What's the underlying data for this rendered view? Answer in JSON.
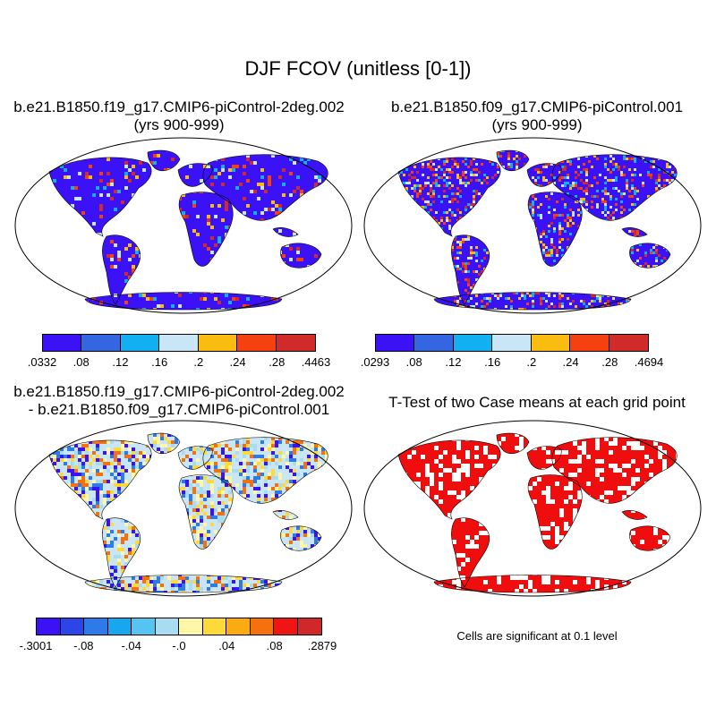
{
  "title": "DJF FCOV (unitless [0-1])",
  "panels": {
    "top_left": {
      "title_line1": "b.e21.B1850.f19_g17.CMIP6-piControl-2deg.002",
      "title_line2": "(yrs 900-999)"
    },
    "top_right": {
      "title_line1": "b.e21.B1850.f09_g17.CMIP6-piControl.001",
      "title_line2": "(yrs 900-999)"
    },
    "bottom_left": {
      "title_line1": "b.e21.B1850.f19_g17.CMIP6-piControl-2deg.002",
      "title_line2": "- b.e21.B1850.f09_g17.CMIP6-piControl.001"
    },
    "bottom_right": {
      "title_line1": "T-Test of two Case means at each grid point"
    }
  },
  "colorbars": {
    "top_left": {
      "colors": [
        "#3b12f5",
        "#3366e0",
        "#12b0f0",
        "#c8e6f5",
        "#fbbc12",
        "#f5410f",
        "#d12a2a"
      ],
      "labels": [
        ".0332",
        ".08",
        ".12",
        ".16",
        ".2",
        ".24",
        ".28",
        ".4463"
      ]
    },
    "top_right": {
      "colors": [
        "#3b12f5",
        "#3366e0",
        "#12b0f0",
        "#c8e6f5",
        "#fbbc12",
        "#f5410f",
        "#d12a2a"
      ],
      "labels": [
        ".0293",
        ".08",
        ".12",
        ".16",
        ".2",
        ".24",
        ".28",
        ".4694"
      ]
    },
    "bottom_left": {
      "colors": [
        "#3b12f5",
        "#2d44e6",
        "#2d7ae8",
        "#18a6ee",
        "#55c4f0",
        "#a8dcf0",
        "#fff6a8",
        "#ffd83a",
        "#fbab10",
        "#f5700f",
        "#f01515",
        "#d02828"
      ],
      "labels": [
        "-.3001",
        "-.08",
        "-.04",
        "-.0",
        ".04",
        ".08",
        ".2879"
      ]
    }
  },
  "significance_note": "Cells are significant at 0.1 level",
  "map_fills": {
    "top_left": {
      "base": "#3b12f5",
      "speckle": [
        "#f5410f",
        "#fbbc12",
        "#12b0f0",
        "#c8e6f5",
        "#d12a2a"
      ]
    },
    "top_right": {
      "base": "#3b12f5",
      "speckle": [
        "#f5410f",
        "#fbbc12",
        "#12b0f0",
        "#c8e6f5",
        "#d12a2a"
      ]
    },
    "bottom_left": {
      "base": "#c8e6f5",
      "speckle": [
        "#fff6a8",
        "#ffd83a",
        "#2d7ae8",
        "#a8dcf0",
        "#f5700f",
        "#3b12f5"
      ]
    },
    "bottom_right": {
      "base": "#f00d0d",
      "speckle": [
        "#ffffff"
      ]
    }
  }
}
